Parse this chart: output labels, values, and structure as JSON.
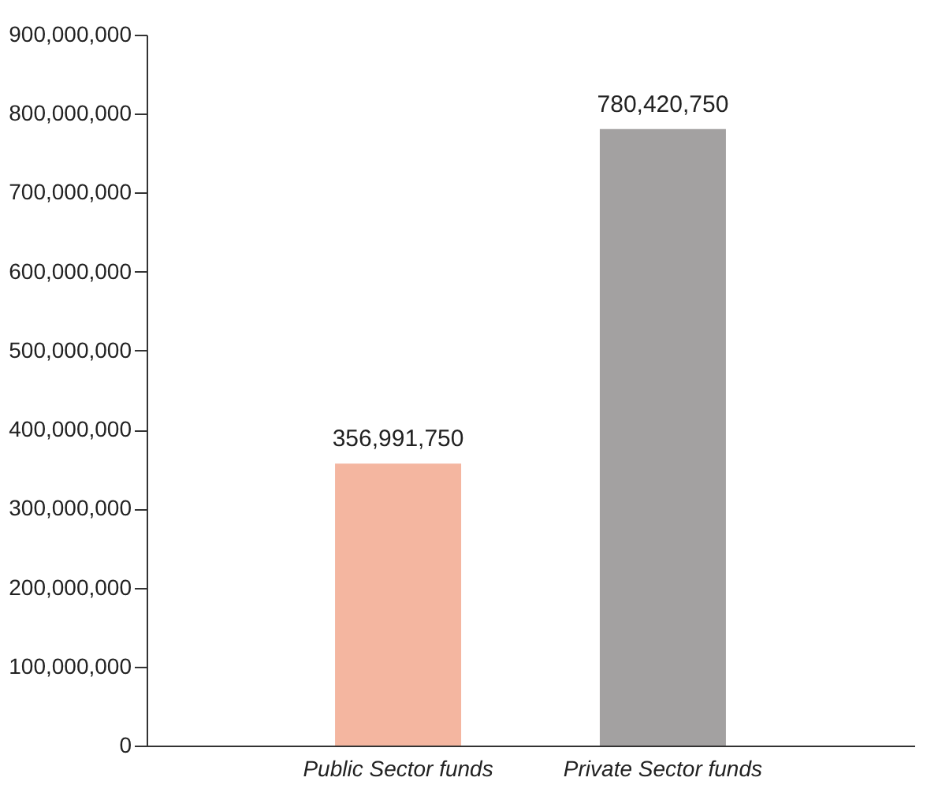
{
  "chart_data": {
    "type": "bar",
    "categories": [
      "Public Sector funds",
      "Private Sector funds"
    ],
    "values": [
      356991750,
      780420750
    ],
    "colors": [
      "#f4b6a0",
      "#a3a1a1"
    ],
    "ylim": [
      0,
      900000000
    ],
    "value_labels": [
      "356,991,750",
      "780,420,750"
    ],
    "yticks": [
      0,
      {
        "value": 100000000,
        "label": "100,000,000"
      },
      {
        "value": 200000000,
        "label": "200,000,000"
      },
      {
        "value": 300000000,
        "label": "300,000,000"
      },
      {
        "value": 400000000,
        "label": "400,000,000"
      },
      {
        "value": 500000000,
        "label": "500,000,000"
      },
      {
        "value": 600000000,
        "label": "600,000,000"
      },
      {
        "value": 700000000,
        "label": "700,000,000"
      },
      {
        "value": 800000000,
        "label": "800,000,000"
      },
      {
        "value": 900000000,
        "label": "900,000,000"
      }
    ],
    "grid": false
  }
}
